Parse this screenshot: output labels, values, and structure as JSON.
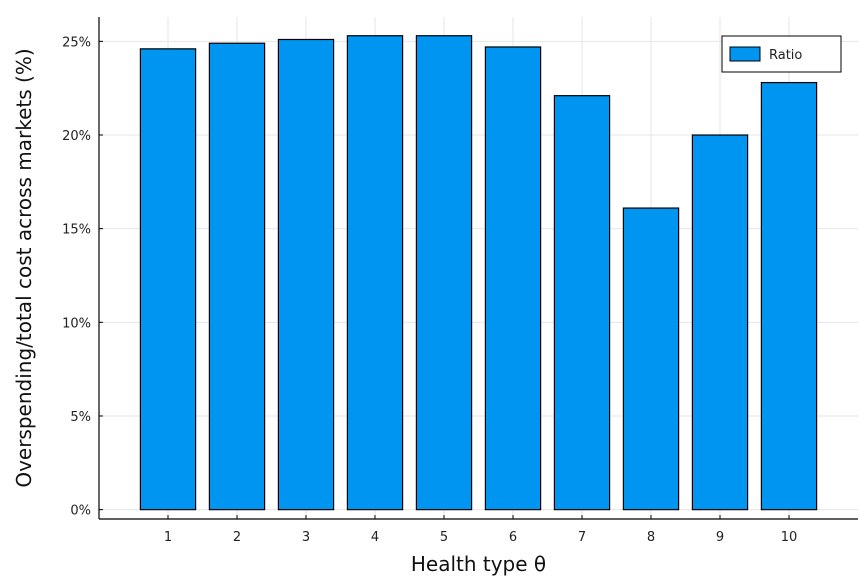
{
  "chart_data": {
    "type": "bar",
    "categories": [
      "1",
      "2",
      "3",
      "4",
      "5",
      "6",
      "7",
      "8",
      "9",
      "10"
    ],
    "series": [
      {
        "name": "Ratio",
        "values": [
          24.6,
          24.9,
          25.1,
          25.3,
          25.3,
          24.7,
          22.1,
          16.1,
          20.0,
          22.8
        ]
      }
    ],
    "xlabel": "Health type θ",
    "ylabel": "Overspending/total cost across markets (%)",
    "ylim": [
      -0.5,
      26.3
    ],
    "yticks": [
      0,
      5,
      10,
      15,
      20,
      25
    ],
    "ytick_labels": [
      "0%",
      "5%",
      "10%",
      "15%",
      "20%",
      "25%"
    ],
    "grid": true,
    "legend_position": "top-right",
    "colors": {
      "bar": "#0095f0",
      "bar_edge": "#000000",
      "grid": "#e6e6e6",
      "axis": "#000000"
    }
  }
}
